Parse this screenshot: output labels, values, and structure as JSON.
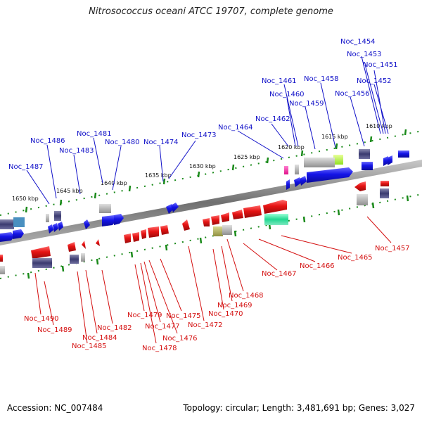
{
  "title": "Nitrosococcus oceani ATCC 19707, complete genome",
  "accession": "Accession: NC_007484",
  "summary": "Topology: circular; Length: 3,481,691 bp; Genes: 3,027",
  "colors": {
    "forward": "#1414e6",
    "reverse": "#e61414",
    "backbone": "#808080",
    "ticks": "#1a8a1a",
    "label_top": "#1010c8",
    "label_bottom": "#d41010"
  },
  "kbp_labels": [
    "1610 kbp",
    "1615 kbp",
    "1620 kbp",
    "1625 kbp",
    "1630 kbp",
    "1635 kbp",
    "1640 kbp",
    "1645 kbp",
    "1650 kbp"
  ],
  "top_genes": [
    "Noc_1454",
    "Noc_1453",
    "Noc_1451",
    "Noc_1452",
    "Noc_1461",
    "Noc_1458",
    "Noc_1456",
    "Noc_1460",
    "Noc_1459",
    "Noc_1462",
    "Noc_1464",
    "Noc_1481",
    "Noc_1473",
    "Noc_1486",
    "Noc_1480",
    "Noc_1474",
    "Noc_1483",
    "Noc_1487"
  ],
  "bottom_genes": [
    "Noc_1457",
    "Noc_1465",
    "Noc_1466",
    "Noc_1467",
    "Noc_1468",
    "Noc_1469",
    "Noc_1470",
    "Noc_1475",
    "Noc_1472",
    "Noc_1479",
    "Noc_1477",
    "Noc_1476",
    "Noc_1478",
    "Noc_1482",
    "Noc_1484",
    "Noc_1485",
    "Noc_1490",
    "Noc_1489"
  ]
}
